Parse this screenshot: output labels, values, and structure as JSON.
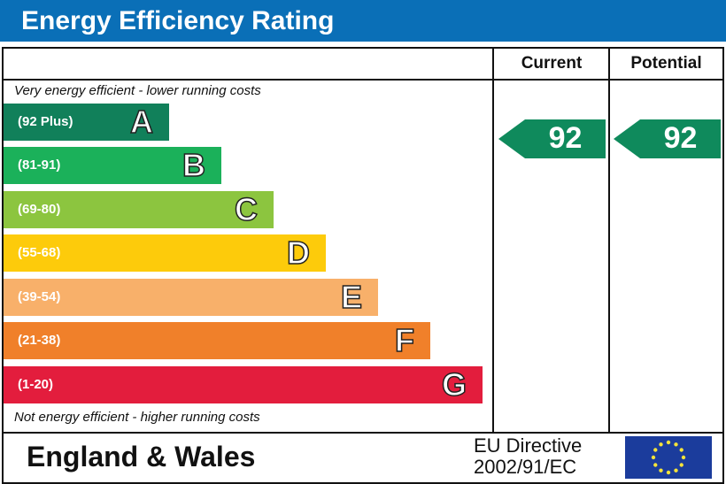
{
  "title": "Energy Efficiency Rating",
  "columns": {
    "current": "Current",
    "potential": "Potential"
  },
  "top_note": "Very energy efficient - lower running costs",
  "bottom_note": "Not energy efficient - higher running costs",
  "bands": [
    {
      "range": "(92 Plus)",
      "letter": "A",
      "color": "#11805a"
    },
    {
      "range": "(81-91)",
      "letter": "B",
      "color": "#1bb15a"
    },
    {
      "range": "(69-80)",
      "letter": "C",
      "color": "#8cc53f"
    },
    {
      "range": "(55-68)",
      "letter": "D",
      "color": "#fdcb0b"
    },
    {
      "range": "(39-54)",
      "letter": "E",
      "color": "#f8b06a"
    },
    {
      "range": "(21-38)",
      "letter": "F",
      "color": "#f0802a"
    },
    {
      "range": "(1-20)",
      "letter": "G",
      "color": "#e31d3d"
    }
  ],
  "current": "92",
  "potential": "92",
  "footer": {
    "region": "England & Wales",
    "directive_line1": "EU Directive",
    "directive_line2": "2002/91/EC"
  }
}
